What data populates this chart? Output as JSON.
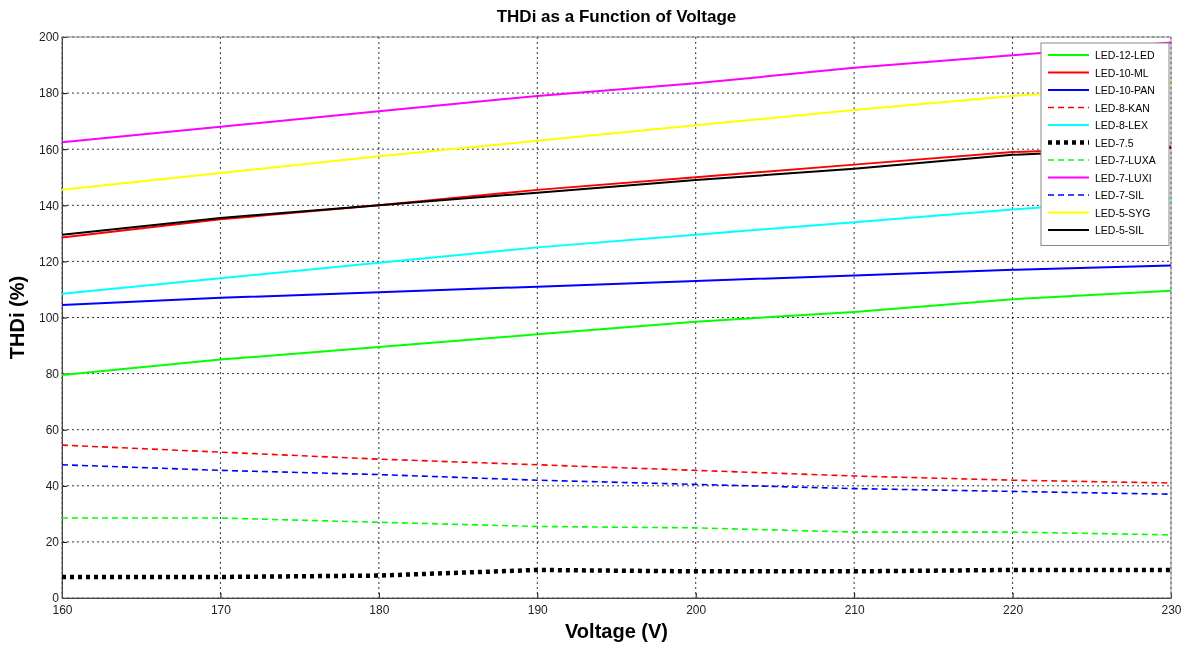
{
  "chart_data": {
    "type": "line",
    "title": "THDi as a Function of Voltage",
    "xlabel": "Voltage (V)",
    "ylabel": "THDi (%)",
    "x": [
      160,
      170,
      180,
      190,
      200,
      210,
      220,
      230
    ],
    "xlim": [
      160,
      230
    ],
    "xticks": [
      160,
      170,
      180,
      190,
      200,
      210,
      220,
      230
    ],
    "ylim": [
      0,
      200
    ],
    "yticks": [
      0,
      20,
      40,
      60,
      80,
      100,
      120,
      140,
      160,
      180,
      200
    ],
    "grid": true,
    "legend": "top right",
    "marker": "none",
    "series": [
      {
        "name": "LED-12-LED",
        "color": "#00ff00",
        "line_style": "solid",
        "values": [
          79.5,
          85,
          89.5,
          94,
          98.5,
          102,
          106.5,
          109.5
        ]
      },
      {
        "name": "LED-10-ML",
        "color": "#ff0000",
        "line_style": "solid",
        "values": [
          128.5,
          135,
          140,
          145.5,
          150,
          154.5,
          159,
          161
        ]
      },
      {
        "name": "LED-10-PAN",
        "color": "#0000ff",
        "line_style": "solid",
        "values": [
          104.5,
          107,
          109,
          111,
          113,
          115,
          117,
          118.5
        ]
      },
      {
        "name": "LED-8-KAN",
        "color": "#ff0000",
        "line_style": "dashed",
        "values": [
          54.5,
          52,
          49.5,
          47.5,
          45.5,
          43.5,
          42,
          41
        ]
      },
      {
        "name": "LED-8-LEX",
        "color": "#00ffff",
        "line_style": "solid",
        "values": [
          108.5,
          114,
          119.5,
          125,
          129.5,
          134,
          138.5,
          142.5
        ]
      },
      {
        "name": "LED-7.5",
        "color": "#000000",
        "line_style": "dotted",
        "values": [
          7.5,
          7.5,
          8,
          10,
          9.5,
          9.5,
          10,
          10
        ]
      },
      {
        "name": "LED-7-LUXA",
        "color": "#00ff00",
        "line_style": "dashed",
        "values": [
          28.5,
          28.5,
          27,
          25.5,
          25,
          23.5,
          23.5,
          22.5
        ]
      },
      {
        "name": "LED-7-LUXI",
        "color": "#ff00ff",
        "line_style": "solid",
        "values": [
          162.5,
          168,
          173.5,
          179,
          183.5,
          189,
          193.5,
          198
        ]
      },
      {
        "name": "LED-7-SIL",
        "color": "#0000ff",
        "line_style": "dashed",
        "values": [
          47.5,
          45.5,
          44,
          42,
          40.5,
          39,
          38,
          37
        ]
      },
      {
        "name": "LED-5-SYG",
        "color": "#ffff00",
        "line_style": "solid",
        "values": [
          145.5,
          151.5,
          157.5,
          163,
          168.5,
          174,
          179,
          183
        ]
      },
      {
        "name": "LED-5-SIL",
        "color": "#000000",
        "line_style": "solid",
        "values": [
          129.5,
          135.5,
          140,
          144.5,
          149,
          153,
          158,
          160.5
        ]
      }
    ]
  }
}
